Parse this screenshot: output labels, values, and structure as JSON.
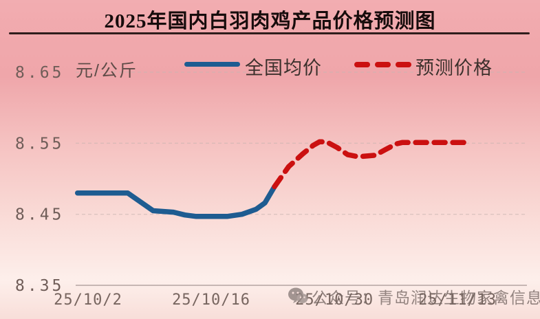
{
  "title": "2025年国内白羽肉鸡产品价格预测图",
  "unit_label": "元/公斤",
  "legend": {
    "avg": {
      "label": "全国均价",
      "color": "#1e5c91",
      "style": "solid"
    },
    "forecast": {
      "label": "预测价格",
      "color": "#cb1010",
      "style": "dashed"
    }
  },
  "watermark": {
    "text": "公众号：青岛润达生物家禽信息"
  },
  "colors": {
    "background_top": "#f2adb1",
    "background_bottom": "#f8ded9",
    "title_rule": "#301d1d",
    "grid": "#c9b4b2",
    "axis": "#b3a4a1",
    "tick_text": "#6f5d58",
    "avg_line": "#1e5c91",
    "forecast_line": "#cb1010"
  },
  "chart_data": {
    "type": "line",
    "title": "2025年国内白羽肉鸡产品价格预测图",
    "ylabel": "元/公斤",
    "xlabel": "",
    "ylim": [
      8.35,
      8.65
    ],
    "grid": "horizontal-dashed",
    "legend_position": "top",
    "yticks": [
      8.65,
      8.55,
      8.45,
      8.35
    ],
    "xticks": [
      {
        "label": "25/10/2",
        "t": 0
      },
      {
        "label": "25/10/16",
        "t": 14
      },
      {
        "label": "25/10/30",
        "t": 28
      },
      {
        "label": "25/11/13",
        "t": 42
      }
    ],
    "x_unit": "days since 25/10/2",
    "series": [
      {
        "name": "全国均价",
        "color": "#1e5c91",
        "style": "solid",
        "points": [
          [
            -1.2,
            8.48
          ],
          [
            4.5,
            8.48
          ],
          [
            7.4,
            8.455
          ],
          [
            9.7,
            8.453
          ],
          [
            11.0,
            8.449
          ],
          [
            12.3,
            8.447
          ],
          [
            15.8,
            8.447
          ],
          [
            17.5,
            8.45
          ],
          [
            19.1,
            8.457
          ],
          [
            20.1,
            8.466
          ],
          [
            21.2,
            8.489
          ]
        ]
      },
      {
        "name": "预测价格",
        "color": "#cb1010",
        "style": "dashed",
        "points": [
          [
            21.2,
            8.489
          ],
          [
            22.8,
            8.517
          ],
          [
            24.4,
            8.535
          ],
          [
            25.6,
            8.547
          ],
          [
            26.3,
            8.552
          ],
          [
            27.1,
            8.552
          ],
          [
            28.3,
            8.544
          ],
          [
            29.5,
            8.534
          ],
          [
            30.7,
            8.531
          ],
          [
            32.6,
            8.533
          ],
          [
            33.8,
            8.541
          ],
          [
            35.0,
            8.549
          ],
          [
            35.7,
            8.551
          ],
          [
            43.3,
            8.551
          ]
        ]
      }
    ]
  }
}
